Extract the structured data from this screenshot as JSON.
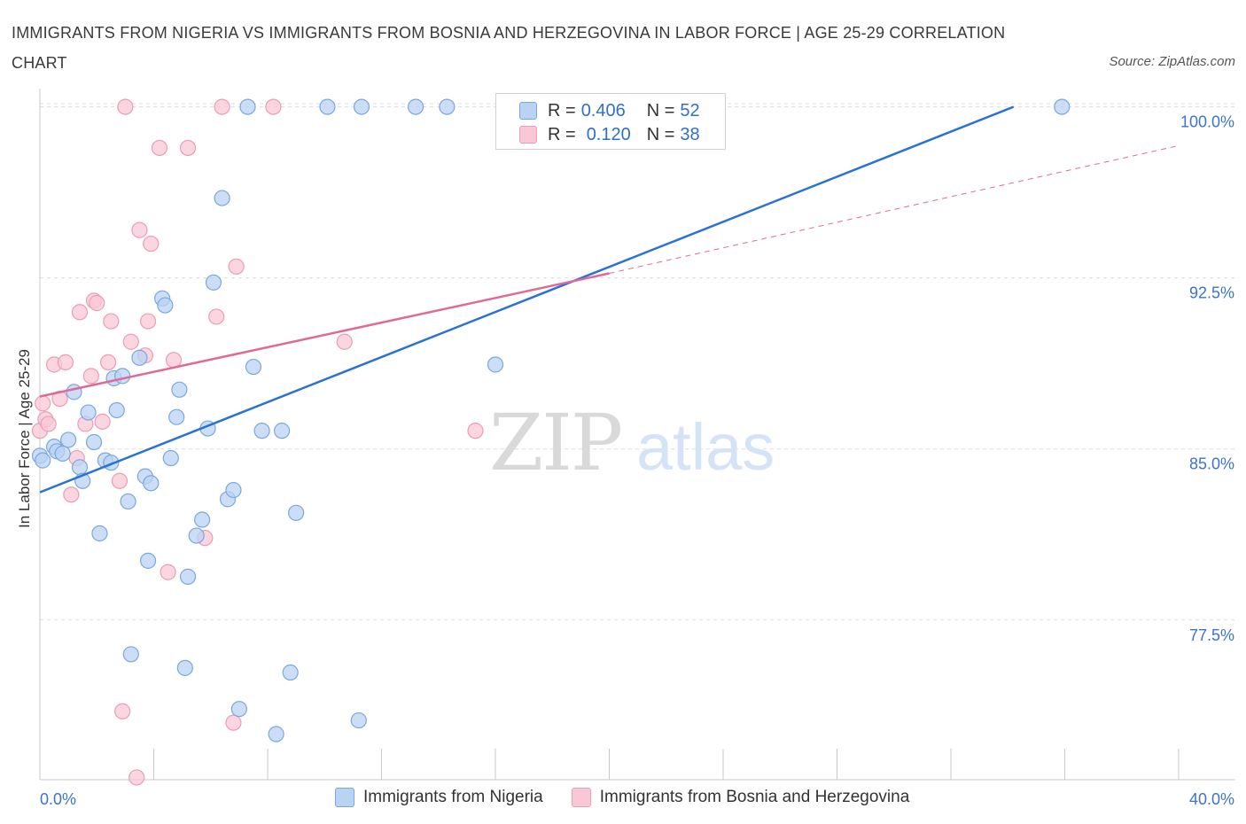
{
  "header": {
    "title": "IMMIGRANTS FROM NIGERIA VS IMMIGRANTS FROM BOSNIA AND HERZEGOVINA IN LABOR FORCE | AGE 25-29 CORRELATION CHART",
    "source": "Source: ZipAtlas.com"
  },
  "watermark": {
    "zip": "ZIP",
    "atlas": "atlas"
  },
  "legend": {
    "series1": {
      "r_label": "R =",
      "r_value": "0.406",
      "n_label": "N =",
      "n_value": "52"
    },
    "series2": {
      "r_label": "R =",
      "r_value": "0.120",
      "n_label": "N =",
      "n_value": "38"
    }
  },
  "colors": {
    "blue_fill": "#b9d3f3",
    "blue_stroke": "#7aa7e0",
    "blue_line": "#2a72d3",
    "pink_fill": "#f9c8d7",
    "pink_stroke": "#ec9cb6",
    "pink_line": "#e06a96",
    "grid": "#dcdcdc",
    "tick_label": "#3a74d0"
  },
  "chart_data": {
    "type": "scatter",
    "title": "IMMIGRANTS FROM NIGERIA VS IMMIGRANTS FROM BOSNIA AND HERZEGOVINA IN LABOR FORCE | AGE 25-29 CORRELATION CHART",
    "xlabel": "",
    "ylabel": "In Labor Force | Age 25-29",
    "xlim": [
      0,
      40
    ],
    "ylim": [
      70.5,
      100.8
    ],
    "x_tick_labels": [
      "0.0%",
      "40.0%"
    ],
    "y_ticks": [
      100.0,
      92.5,
      85.0,
      77.5
    ],
    "y_tick_labels": [
      "100.0%",
      "92.5%",
      "85.0%",
      "77.5%"
    ],
    "grid": "horizontal dashed",
    "legend_position": "top-center",
    "series": [
      {
        "name": "Immigrants from Nigeria",
        "r": 0.406,
        "n": 52,
        "trend": {
          "x": [
            0,
            34.2
          ],
          "y": [
            83.1,
            100.0
          ],
          "style": "solid"
        },
        "points": [
          [
            0.0,
            84.7
          ],
          [
            0.5,
            85.1
          ],
          [
            0.6,
            84.9
          ],
          [
            0.8,
            84.8
          ],
          [
            1.0,
            85.4
          ],
          [
            1.2,
            87.5
          ],
          [
            1.4,
            84.2
          ],
          [
            1.5,
            83.6
          ],
          [
            1.7,
            86.6
          ],
          [
            1.9,
            85.3
          ],
          [
            2.1,
            81.3
          ],
          [
            2.3,
            84.5
          ],
          [
            2.5,
            84.4
          ],
          [
            2.6,
            88.1
          ],
          [
            2.7,
            86.7
          ],
          [
            2.9,
            88.2
          ],
          [
            3.1,
            82.7
          ],
          [
            3.2,
            76.0
          ],
          [
            3.5,
            89.0
          ],
          [
            3.7,
            83.8
          ],
          [
            3.8,
            80.1
          ],
          [
            3.9,
            83.5
          ],
          [
            4.3,
            91.6
          ],
          [
            4.4,
            91.3
          ],
          [
            4.6,
            84.6
          ],
          [
            4.8,
            86.4
          ],
          [
            4.9,
            87.6
          ],
          [
            5.1,
            75.4
          ],
          [
            5.2,
            79.4
          ],
          [
            5.5,
            81.2
          ],
          [
            5.7,
            81.9
          ],
          [
            5.9,
            85.9
          ],
          [
            6.1,
            92.3
          ],
          [
            6.4,
            96.0
          ],
          [
            6.6,
            82.8
          ],
          [
            6.8,
            83.2
          ],
          [
            7.0,
            73.6
          ],
          [
            7.3,
            100.0
          ],
          [
            7.5,
            88.6
          ],
          [
            7.8,
            85.8
          ],
          [
            8.3,
            72.5
          ],
          [
            8.5,
            85.8
          ],
          [
            8.8,
            75.2
          ],
          [
            9.0,
            82.2
          ],
          [
            10.1,
            100.0
          ],
          [
            11.2,
            73.1
          ],
          [
            11.3,
            100.0
          ],
          [
            13.2,
            100.0
          ],
          [
            14.3,
            100.0
          ],
          [
            16.0,
            88.7
          ],
          [
            35.9,
            100.0
          ],
          [
            0.1,
            84.5
          ]
        ]
      },
      {
        "name": "Immigrants from Bosnia and Herzegovina",
        "r": 0.12,
        "n": 38,
        "trend": {
          "x": [
            0,
            20.0
          ],
          "y": [
            87.3,
            92.7
          ],
          "style": "solid"
        },
        "trend_extension": {
          "x": [
            20.0,
            40.0
          ],
          "y": [
            92.7,
            98.3
          ],
          "style": "dashed"
        },
        "points": [
          [
            0.0,
            85.8
          ],
          [
            0.1,
            87.0
          ],
          [
            0.2,
            86.3
          ],
          [
            0.3,
            86.1
          ],
          [
            0.5,
            88.7
          ],
          [
            0.7,
            87.2
          ],
          [
            0.9,
            88.8
          ],
          [
            1.1,
            83.0
          ],
          [
            1.3,
            84.6
          ],
          [
            1.4,
            91.0
          ],
          [
            1.6,
            86.1
          ],
          [
            1.8,
            88.2
          ],
          [
            1.9,
            91.5
          ],
          [
            2.0,
            91.4
          ],
          [
            2.2,
            86.2
          ],
          [
            2.4,
            88.8
          ],
          [
            2.5,
            90.6
          ],
          [
            2.8,
            83.6
          ],
          [
            2.9,
            73.5
          ],
          [
            3.0,
            100.0
          ],
          [
            3.2,
            89.7
          ],
          [
            3.4,
            70.6
          ],
          [
            3.5,
            94.6
          ],
          [
            3.7,
            89.1
          ],
          [
            3.8,
            90.6
          ],
          [
            3.9,
            94.0
          ],
          [
            4.2,
            98.2
          ],
          [
            4.5,
            79.6
          ],
          [
            4.7,
            88.9
          ],
          [
            5.2,
            98.2
          ],
          [
            5.8,
            81.1
          ],
          [
            6.2,
            90.8
          ],
          [
            6.4,
            100.0
          ],
          [
            6.8,
            73.0
          ],
          [
            6.9,
            93.0
          ],
          [
            8.2,
            100.0
          ],
          [
            10.7,
            89.7
          ],
          [
            15.3,
            85.8
          ]
        ]
      }
    ]
  },
  "bottom_legend": {
    "series1": "Immigrants from Nigeria",
    "series2": "Immigrants from Bosnia and Herzegovina"
  }
}
